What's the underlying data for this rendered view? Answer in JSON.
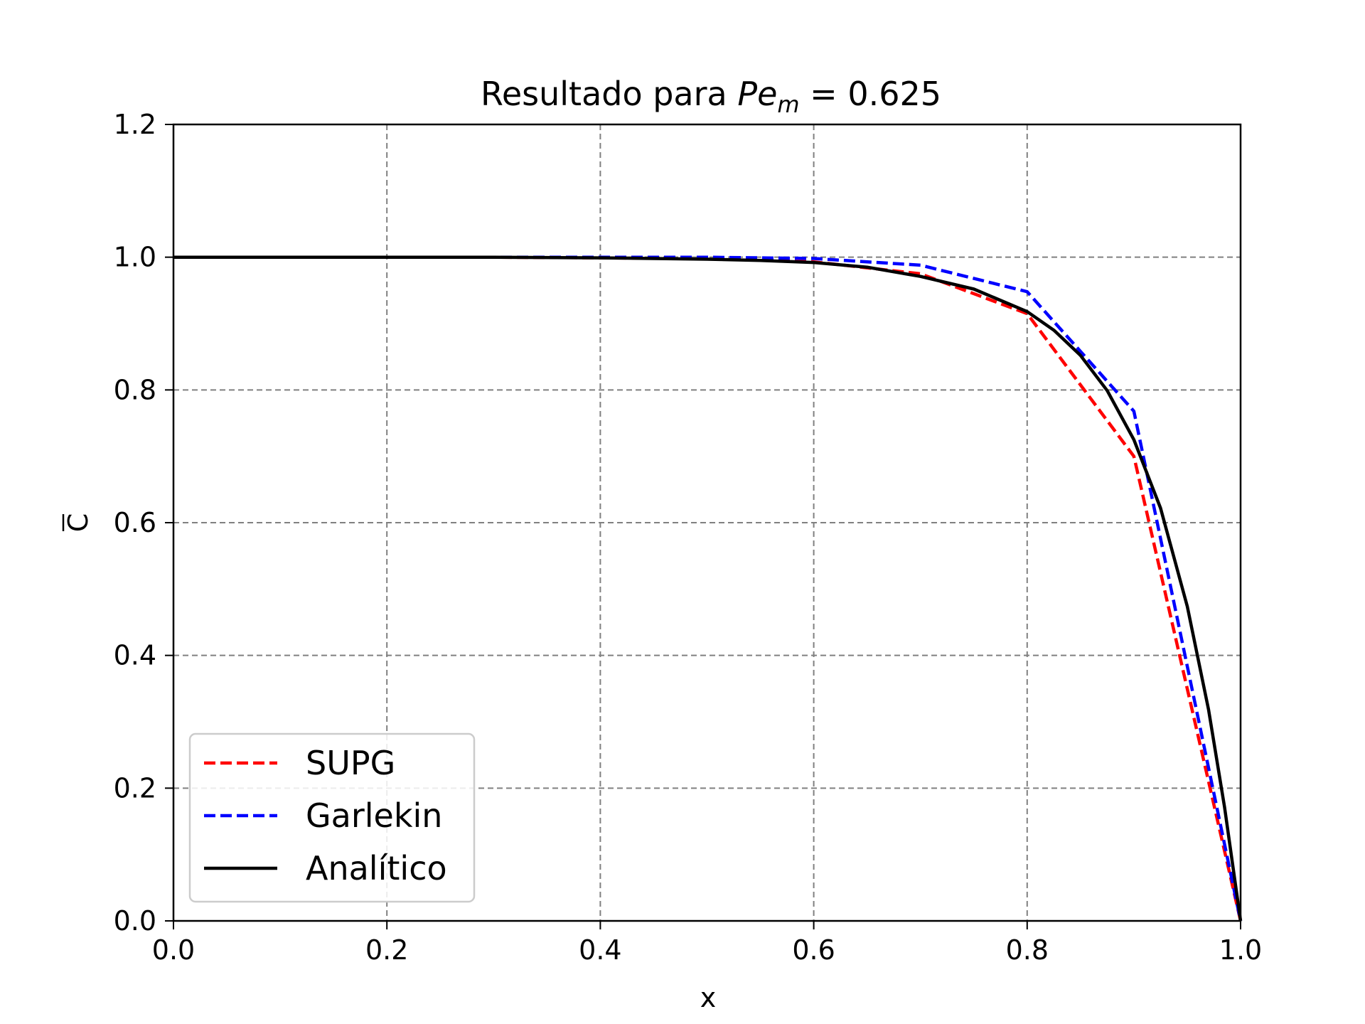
{
  "chart_data": {
    "type": "line",
    "title": {
      "prefix": "Resultado para ",
      "math_var": "Pe",
      "math_sub": "m",
      "equals": " = 0.625"
    },
    "xlabel": "x",
    "ylabel": "C",
    "ylabel_overbar": true,
    "xlim": [
      0.0,
      1.0
    ],
    "ylim": [
      0.0,
      1.2
    ],
    "xticks": [
      0.0,
      0.2,
      0.4,
      0.6,
      0.8,
      1.0
    ],
    "yticks": [
      0.0,
      0.2,
      0.4,
      0.6,
      0.8,
      1.0,
      1.2
    ],
    "xtick_labels": [
      "0.0",
      "0.2",
      "0.4",
      "0.6",
      "0.8",
      "1.0"
    ],
    "ytick_labels": [
      "0.0",
      "0.2",
      "0.4",
      "0.6",
      "0.8",
      "1.0",
      "1.2"
    ],
    "grid": true,
    "legend_position": "lower-left",
    "series": [
      {
        "name": "SUPG",
        "color": "#ff0000",
        "style": "dashed",
        "x": [
          0.0,
          0.1,
          0.2,
          0.3,
          0.4,
          0.5,
          0.6,
          0.7,
          0.8,
          0.9,
          1.0
        ],
        "y": [
          1.0,
          1.0,
          1.0,
          1.0,
          0.999,
          0.998,
          0.993,
          0.975,
          0.915,
          0.7,
          0.0
        ]
      },
      {
        "name": "Garlekin",
        "color": "#0000ff",
        "style": "dashed",
        "x": [
          0.0,
          0.1,
          0.2,
          0.3,
          0.4,
          0.5,
          0.6,
          0.7,
          0.8,
          0.9,
          1.0
        ],
        "y": [
          1.0,
          1.0,
          1.0,
          1.0,
          1.0,
          1.0,
          0.998,
          0.988,
          0.948,
          0.768,
          0.0
        ]
      },
      {
        "name": "Analítico",
        "color": "#000000",
        "style": "solid",
        "x": [
          0.0,
          0.1,
          0.2,
          0.3,
          0.4,
          0.5,
          0.55,
          0.6,
          0.65,
          0.7,
          0.75,
          0.8,
          0.825,
          0.85,
          0.875,
          0.9,
          0.925,
          0.95,
          0.97,
          0.985,
          1.0
        ],
        "y": [
          1.0,
          1.0,
          1.0,
          1.0,
          0.999,
          0.997,
          0.995,
          0.992,
          0.985,
          0.971,
          0.952,
          0.918,
          0.89,
          0.852,
          0.799,
          0.725,
          0.622,
          0.474,
          0.318,
          0.171,
          0.0
        ]
      }
    ]
  }
}
